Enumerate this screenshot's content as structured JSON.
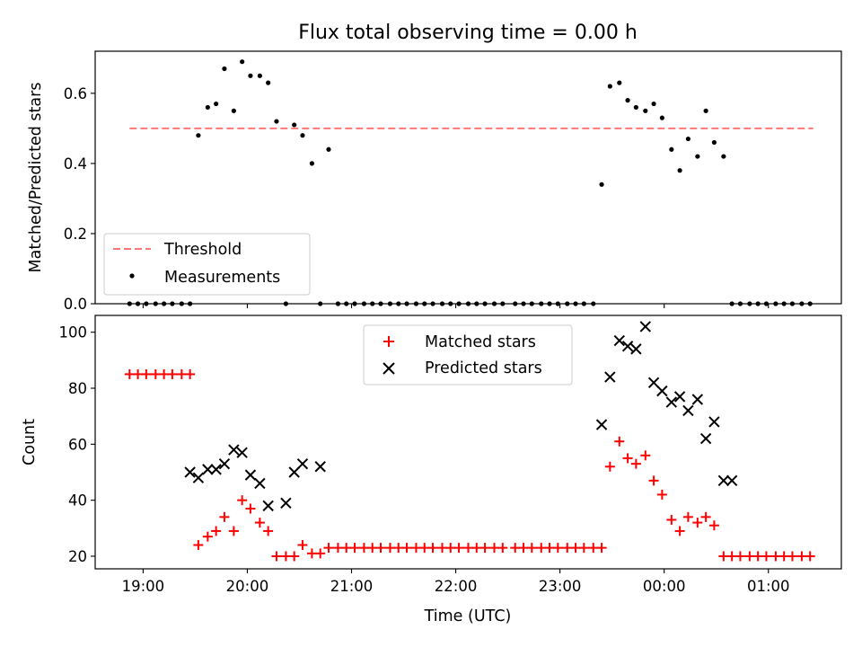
{
  "chart_data": [
    {
      "type": "scatter",
      "title": "Flux total observing time = 0.00 h",
      "ylabel": "Matched/Predicted stars",
      "xlabel": "",
      "ylim": [
        0,
        0.72
      ],
      "yticks": [
        0.0,
        0.2,
        0.4,
        0.6
      ],
      "ytick_labels": [
        "0.0",
        "0.2",
        "0.4",
        "0.6"
      ],
      "x_unit": "hours since 19:00 UTC",
      "xlim": [
        -0.46,
        6.7
      ],
      "grid": false,
      "legend_position": "lower-left",
      "threshold": {
        "name": "Threshold",
        "y": 0.5,
        "x": [
          -0.13,
          6.43
        ],
        "color": "#ff7777"
      },
      "series": [
        {
          "name": "Measurements",
          "color": "#000000",
          "x": [
            -0.13,
            -0.05,
            0.03,
            0.12,
            0.2,
            0.28,
            0.37,
            0.45,
            0.53,
            0.62,
            0.7,
            0.78,
            0.87,
            0.95,
            1.03,
            1.12,
            1.2,
            1.28,
            1.37,
            1.45,
            1.53,
            1.62,
            1.7,
            1.78,
            1.87,
            1.95,
            2.03,
            2.12,
            2.2,
            2.28,
            2.37,
            2.45,
            2.53,
            2.62,
            2.7,
            2.78,
            2.87,
            2.95,
            3.03,
            3.12,
            3.2,
            3.28,
            3.37,
            3.45,
            3.57,
            3.65,
            3.73,
            3.82,
            3.9,
            3.98,
            4.07,
            4.15,
            4.23,
            4.32,
            4.4,
            4.48,
            4.57,
            4.65,
            4.73,
            4.82,
            4.9,
            4.98,
            5.07,
            5.15,
            5.23,
            5.32,
            5.4,
            5.48,
            5.57,
            5.65,
            5.73,
            5.82,
            5.9,
            5.98,
            6.07,
            6.15,
            6.23,
            6.32,
            6.4
          ],
          "y": [
            0,
            0,
            0,
            0,
            0,
            0,
            0,
            0,
            0.48,
            0.56,
            0.57,
            0.67,
            0.55,
            0.69,
            0.65,
            0.65,
            0.63,
            0.52,
            0,
            0.51,
            0.48,
            0.4,
            0,
            0.44,
            0,
            0,
            0,
            0,
            0,
            0,
            0,
            0,
            0,
            0,
            0,
            0,
            0,
            0,
            0,
            0,
            0,
            0,
            0,
            0,
            0,
            0,
            0,
            0,
            0,
            0,
            0,
            0,
            0,
            0,
            0.34,
            0.62,
            0.63,
            0.58,
            0.56,
            0.55,
            0.57,
            0.53,
            0.44,
            0.38,
            0.47,
            0.42,
            0.55,
            0.46,
            0.42,
            0,
            0,
            0,
            0,
            0,
            0,
            0,
            0,
            0,
            0
          ]
        }
      ]
    },
    {
      "type": "scatter",
      "title": "",
      "ylabel": "Count",
      "xlabel": "Time (UTC)",
      "ylim": [
        15.5,
        106
      ],
      "yticks": [
        20,
        40,
        60,
        80,
        100
      ],
      "ytick_labels": [
        "20",
        "40",
        "60",
        "80",
        "100"
      ],
      "x_unit": "hours since 19:00 UTC",
      "xlim": [
        -0.46,
        6.7
      ],
      "xticks": [
        0,
        1,
        2,
        3,
        4,
        5,
        6
      ],
      "xtick_labels": [
        "19:00",
        "20:00",
        "21:00",
        "22:00",
        "23:00",
        "00:00",
        "01:00"
      ],
      "grid": false,
      "legend_position": "upper-center",
      "series": [
        {
          "name": "Matched stars",
          "marker": "plus",
          "color": "#ff0000",
          "x": [
            -0.13,
            -0.05,
            0.03,
            0.12,
            0.2,
            0.28,
            0.37,
            0.45,
            0.53,
            0.62,
            0.7,
            0.78,
            0.87,
            0.95,
            1.03,
            1.12,
            1.2,
            1.28,
            1.37,
            1.45,
            1.53,
            1.62,
            1.7,
            1.78,
            1.87,
            1.95,
            2.03,
            2.12,
            2.2,
            2.28,
            2.37,
            2.45,
            2.53,
            2.62,
            2.7,
            2.78,
            2.87,
            2.95,
            3.03,
            3.12,
            3.2,
            3.28,
            3.37,
            3.45,
            3.57,
            3.65,
            3.73,
            3.82,
            3.9,
            3.98,
            4.07,
            4.15,
            4.23,
            4.32,
            4.4,
            4.48,
            4.57,
            4.65,
            4.73,
            4.82,
            4.9,
            4.98,
            5.07,
            5.15,
            5.23,
            5.32,
            5.4,
            5.48,
            5.57,
            5.65,
            5.73,
            5.82,
            5.9,
            5.98,
            6.07,
            6.15,
            6.23,
            6.32,
            6.4
          ],
          "y": [
            85,
            85,
            85,
            85,
            85,
            85,
            85,
            85,
            24,
            27,
            29,
            34,
            29,
            40,
            37,
            32,
            29,
            20,
            20,
            20,
            24,
            21,
            21,
            23,
            23,
            23,
            23,
            23,
            23,
            23,
            23,
            23,
            23,
            23,
            23,
            23,
            23,
            23,
            23,
            23,
            23,
            23,
            23,
            23,
            23,
            23,
            23,
            23,
            23,
            23,
            23,
            23,
            23,
            23,
            23,
            52,
            61,
            55,
            53,
            56,
            47,
            42,
            33,
            29,
            34,
            32,
            34,
            31,
            20,
            20,
            20,
            20,
            20,
            20,
            20,
            20,
            20,
            20,
            20
          ]
        },
        {
          "name": "Predicted stars",
          "marker": "x",
          "color": "#000000",
          "x": [
            0.45,
            0.53,
            0.62,
            0.7,
            0.78,
            0.87,
            0.95,
            1.03,
            1.12,
            1.2,
            1.37,
            1.45,
            1.53,
            1.7,
            4.4,
            4.48,
            4.57,
            4.65,
            4.73,
            4.82,
            4.9,
            4.98,
            5.07,
            5.15,
            5.23,
            5.32,
            5.4,
            5.48,
            5.57,
            5.65
          ],
          "y": [
            50,
            48,
            51,
            51,
            53,
            58,
            57,
            49,
            46,
            38,
            39,
            50,
            53,
            52,
            67,
            84,
            97,
            95,
            94,
            102,
            82,
            79,
            75,
            77,
            72,
            76,
            62,
            68,
            47,
            47
          ]
        }
      ]
    }
  ]
}
